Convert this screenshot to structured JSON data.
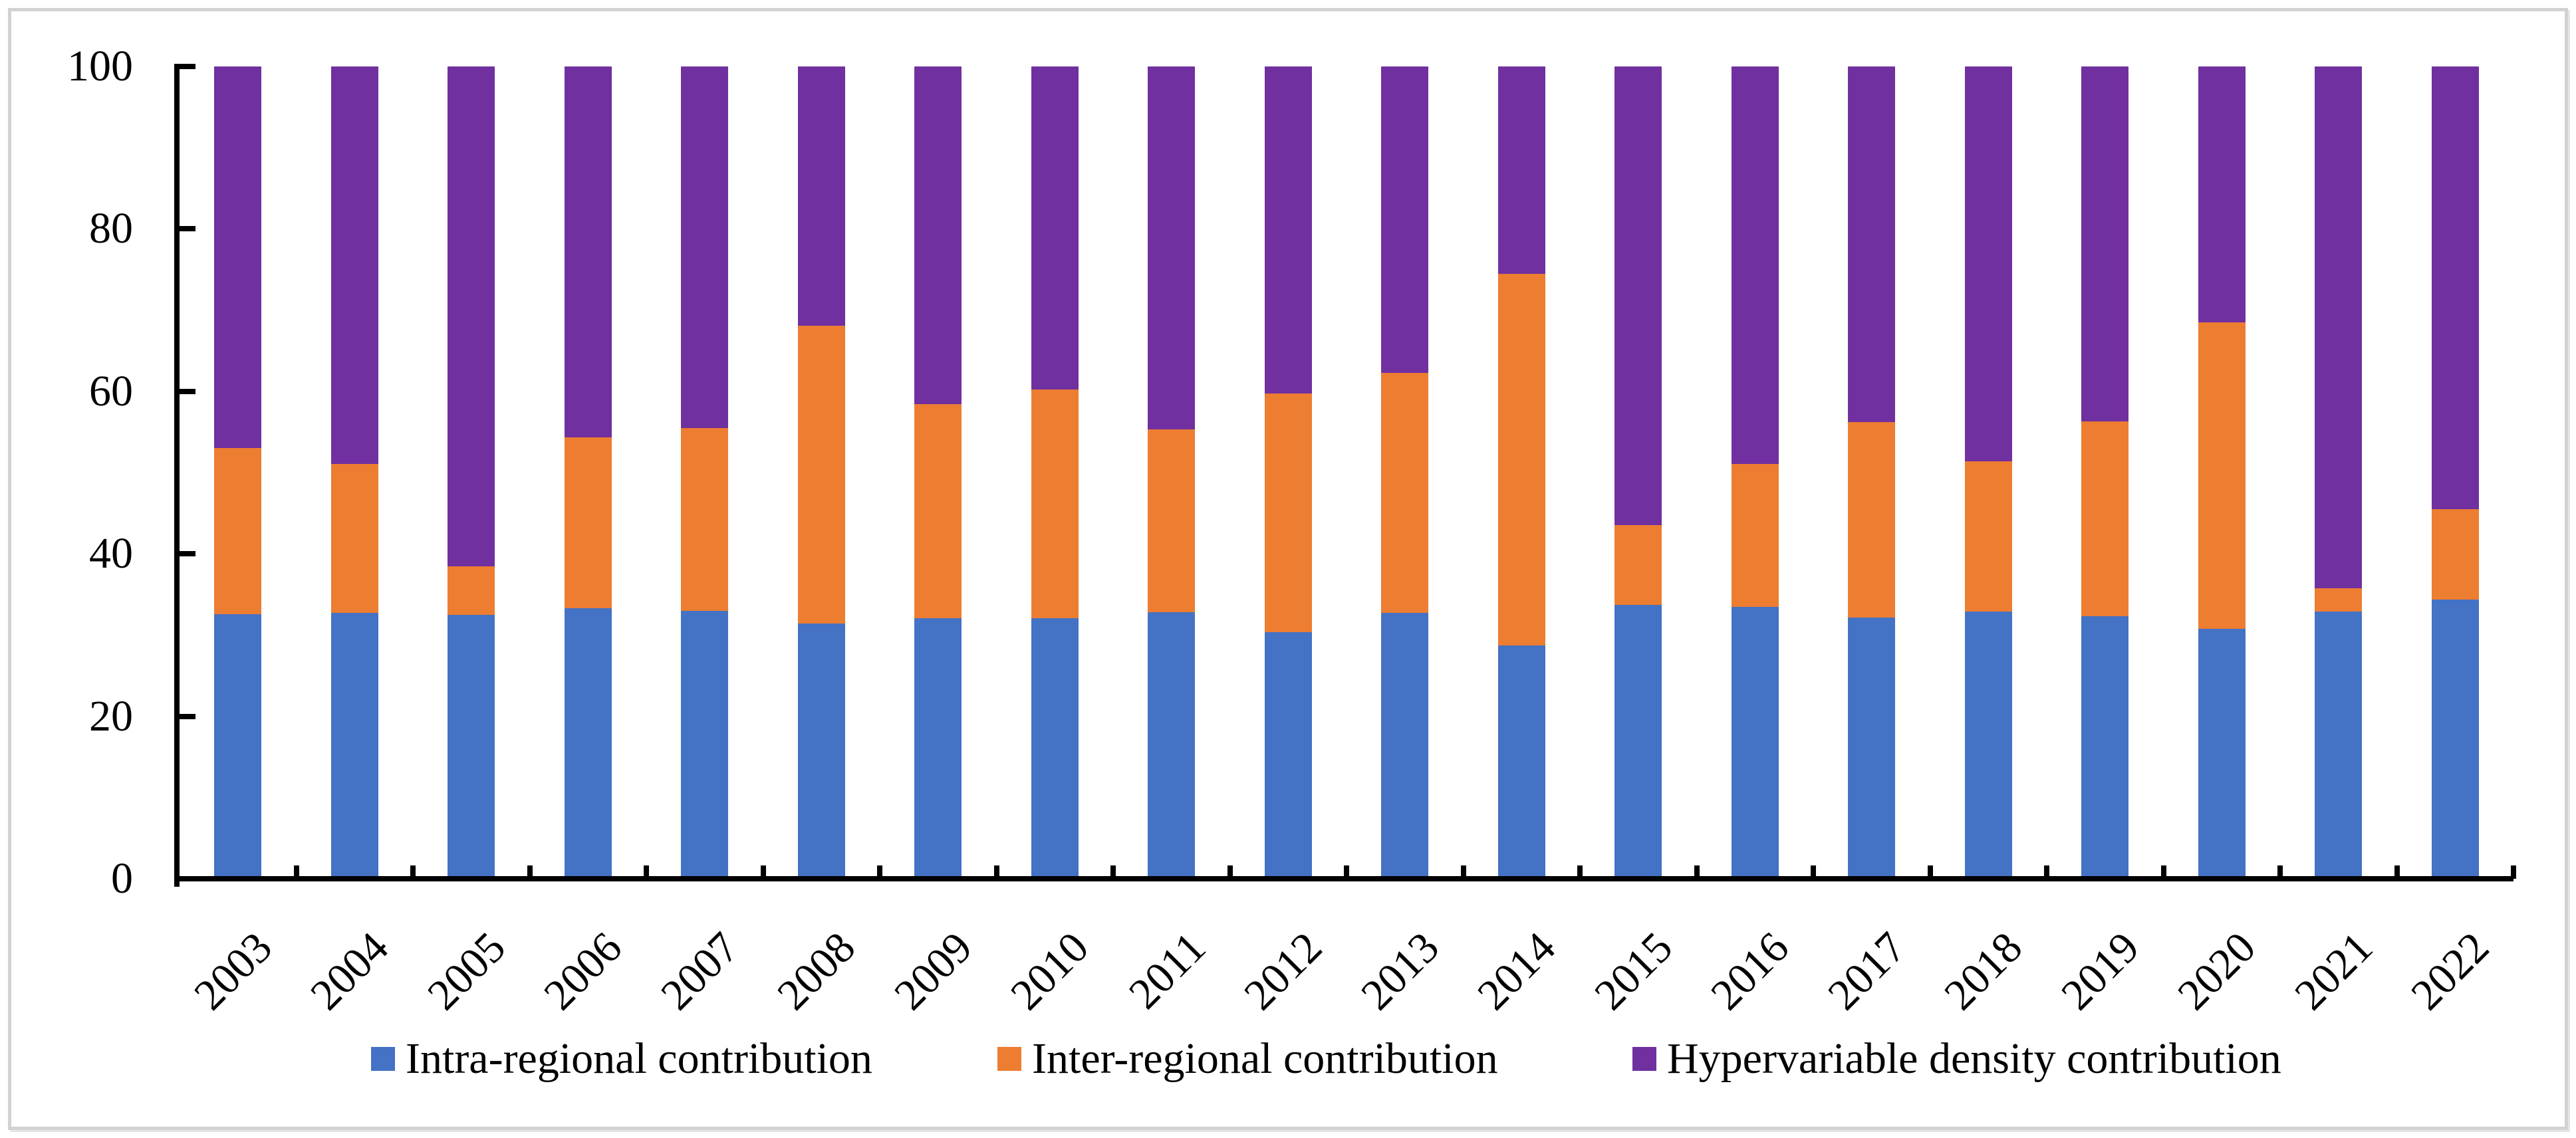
{
  "chart_data": {
    "type": "bar",
    "stacked": true,
    "title": "",
    "xlabel": "",
    "ylabel": "",
    "categories": [
      "2003",
      "2004",
      "2005",
      "2006",
      "2007",
      "2008",
      "2009",
      "2010",
      "2011",
      "2012",
      "2013",
      "2014",
      "2015",
      "2016",
      "2017",
      "2018",
      "2019",
      "2020",
      "2021",
      "2022"
    ],
    "series": [
      {
        "name": "Intra-regional contribution",
        "color": "#4472C4",
        "values": [
          32.6,
          32.7,
          32.5,
          33.3,
          33.0,
          31.4,
          32.1,
          32.1,
          32.8,
          30.4,
          32.7,
          28.7,
          33.7,
          33.5,
          32.2,
          32.9,
          32.3,
          30.8,
          32.9,
          34.4
        ]
      },
      {
        "name": "Inter-regional contribution",
        "color": "#ED7D31",
        "values": [
          20.4,
          18.4,
          6.0,
          21.0,
          22.5,
          36.7,
          26.3,
          28.1,
          22.5,
          29.3,
          29.6,
          45.8,
          9.8,
          17.6,
          24.0,
          18.5,
          24.0,
          37.7,
          2.9,
          11.1
        ]
      },
      {
        "name": "Hypervariable density contribution",
        "color": "#7030A0",
        "values": [
          47.0,
          48.9,
          61.5,
          45.7,
          44.5,
          31.9,
          41.6,
          39.8,
          44.7,
          40.3,
          37.7,
          25.5,
          56.5,
          48.9,
          43.8,
          48.6,
          43.7,
          31.5,
          64.2,
          54.5
        ]
      }
    ],
    "ylim": [
      0,
      100
    ],
    "y_ticks": [
      0,
      20,
      40,
      60,
      80,
      100
    ],
    "grid": false,
    "legend_position": "bottom",
    "x_tick_label_rotation": 45,
    "axis_color": "#000000",
    "frame_color": "#d2d2d2"
  }
}
